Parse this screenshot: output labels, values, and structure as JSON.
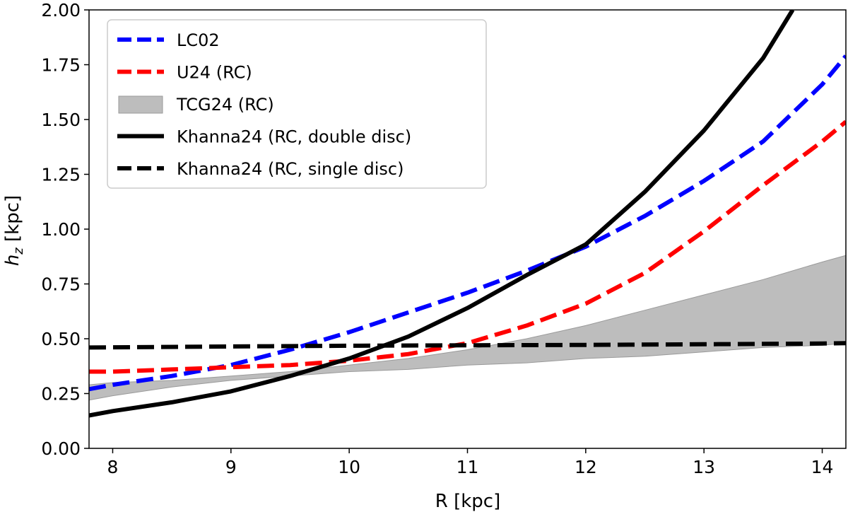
{
  "chart_data": {
    "type": "line",
    "xlabel": "R [kpc]",
    "ylabel_main": "h",
    "ylabel_sub": "z",
    "ylabel_rest": " [kpc]",
    "xlim": [
      7.8,
      14.2
    ],
    "ylim": [
      0.0,
      2.0
    ],
    "xticks": [
      8,
      9,
      10,
      11,
      12,
      13,
      14
    ],
    "yticks": [
      0.0,
      0.25,
      0.5,
      0.75,
      1.0,
      1.25,
      1.5,
      1.75,
      2.0
    ],
    "xtick_labels": [
      "8",
      "9",
      "10",
      "11",
      "12",
      "13",
      "14"
    ],
    "ytick_labels": [
      "0.00",
      "0.25",
      "0.50",
      "0.75",
      "1.00",
      "1.25",
      "1.50",
      "1.75",
      "2.00"
    ],
    "grid": false,
    "legend_position": "top-left",
    "band": {
      "name": "TCG24 (RC)",
      "color": "#bdbdbd",
      "x": [
        7.8,
        8.0,
        8.5,
        9.0,
        9.5,
        10.0,
        10.5,
        11.0,
        11.5,
        12.0,
        12.5,
        13.0,
        13.5,
        14.0,
        14.2
      ],
      "lower": [
        0.22,
        0.24,
        0.28,
        0.31,
        0.33,
        0.35,
        0.36,
        0.38,
        0.39,
        0.41,
        0.42,
        0.44,
        0.46,
        0.47,
        0.48
      ],
      "upper": [
        0.29,
        0.3,
        0.31,
        0.33,
        0.35,
        0.38,
        0.41,
        0.45,
        0.5,
        0.56,
        0.63,
        0.7,
        0.77,
        0.85,
        0.88
      ]
    },
    "series": [
      {
        "name": "LC02",
        "color": "#0000ff",
        "style": "dashed",
        "x": [
          7.8,
          8.0,
          8.5,
          9.0,
          9.5,
          10.0,
          10.5,
          11.0,
          11.5,
          12.0,
          12.5,
          13.0,
          13.5,
          14.0,
          14.2
        ],
        "y": [
          0.27,
          0.29,
          0.33,
          0.38,
          0.45,
          0.53,
          0.62,
          0.71,
          0.81,
          0.92,
          1.06,
          1.22,
          1.4,
          1.66,
          1.79
        ]
      },
      {
        "name": "U24 (RC)",
        "color": "#ff0000",
        "style": "dashed",
        "x": [
          7.8,
          8.0,
          8.5,
          9.0,
          9.5,
          10.0,
          10.5,
          11.0,
          11.5,
          12.0,
          12.5,
          13.0,
          13.5,
          14.0,
          14.2
        ],
        "y": [
          0.35,
          0.35,
          0.36,
          0.37,
          0.38,
          0.4,
          0.43,
          0.48,
          0.56,
          0.66,
          0.8,
          0.99,
          1.2,
          1.4,
          1.49
        ]
      },
      {
        "name": "Khanna24 (RC, double disc)",
        "color": "#000000",
        "style": "solid",
        "x": [
          7.8,
          8.0,
          8.5,
          9.0,
          9.5,
          10.0,
          10.5,
          11.0,
          11.5,
          12.0,
          12.5,
          13.0,
          13.5,
          13.75
        ],
        "y": [
          0.15,
          0.17,
          0.21,
          0.26,
          0.33,
          0.41,
          0.51,
          0.64,
          0.79,
          0.93,
          1.17,
          1.45,
          1.78,
          2.0
        ]
      },
      {
        "name": "Khanna24 (RC, single disc)",
        "color": "#000000",
        "style": "dashed",
        "x": [
          7.8,
          9.0,
          10.0,
          11.0,
          12.0,
          13.0,
          14.0,
          14.2
        ],
        "y": [
          0.46,
          0.465,
          0.468,
          0.47,
          0.472,
          0.475,
          0.478,
          0.48
        ]
      }
    ],
    "legend_order": [
      "LC02",
      "U24 (RC)",
      "TCG24 (RC)",
      "Khanna24 (RC, double disc)",
      "Khanna24 (RC, single disc)"
    ]
  }
}
